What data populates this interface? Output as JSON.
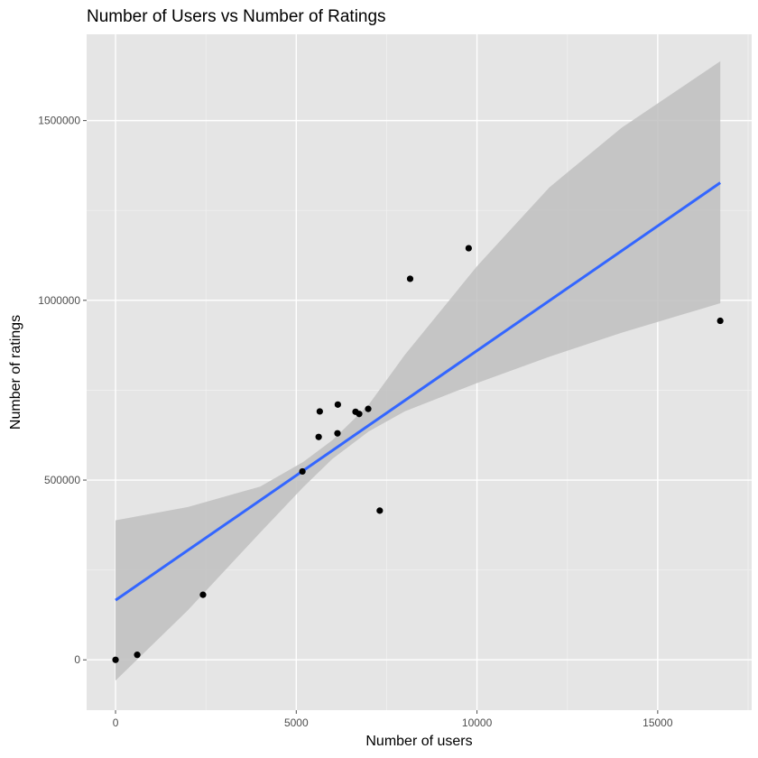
{
  "chart_data": {
    "type": "scatter",
    "title": "Number of Users vs Number of Ratings",
    "xlabel": "Number of users",
    "ylabel": "Number of ratings",
    "xlim": [
      -800,
      17600
    ],
    "ylim": [
      -140000,
      1740000
    ],
    "x_ticks": [
      0,
      5000,
      10000,
      15000
    ],
    "x_tick_labels": [
      "0",
      "5000",
      "10000",
      "15000"
    ],
    "y_ticks": [
      0,
      500000,
      1000000,
      1500000
    ],
    "y_tick_labels": [
      "0",
      "500000",
      "1000000",
      "1500000"
    ],
    "grid": true,
    "points": [
      {
        "x": 0,
        "y": 0
      },
      {
        "x": 600,
        "y": 14000
      },
      {
        "x": 2420,
        "y": 181000
      },
      {
        "x": 5170,
        "y": 524000
      },
      {
        "x": 5620,
        "y": 620000
      },
      {
        "x": 5650,
        "y": 691000
      },
      {
        "x": 6140,
        "y": 630000
      },
      {
        "x": 6150,
        "y": 710000
      },
      {
        "x": 6640,
        "y": 690000
      },
      {
        "x": 6740,
        "y": 684000
      },
      {
        "x": 6990,
        "y": 698000
      },
      {
        "x": 7310,
        "y": 415000
      },
      {
        "x": 8150,
        "y": 1060000
      },
      {
        "x": 9770,
        "y": 1145000
      },
      {
        "x": 16730,
        "y": 943000
      }
    ],
    "trend_line": {
      "x": [
        0,
        16730
      ],
      "y": [
        166000,
        1327000
      ]
    },
    "confidence_band": {
      "x": [
        0,
        2000,
        4000,
        5200,
        6000,
        7000,
        8000,
        10000,
        12000,
        14000,
        16730
      ],
      "lower": [
        -58000,
        138000,
        354000,
        481000,
        559000,
        635000,
        691000,
        770000,
        843000,
        910000,
        992000
      ],
      "upper": [
        388000,
        425000,
        482000,
        551000,
        611000,
        709000,
        848000,
        1095000,
        1314000,
        1480000,
        1665000
      ]
    },
    "colors": {
      "panel": "#e5e5e5",
      "grid_major": "#ffffff",
      "grid_minor": "#f0f0f0",
      "points": "#000000",
      "line": "#3366ff",
      "band": "#bfbfbf",
      "tick": "#4d4d4d"
    }
  }
}
